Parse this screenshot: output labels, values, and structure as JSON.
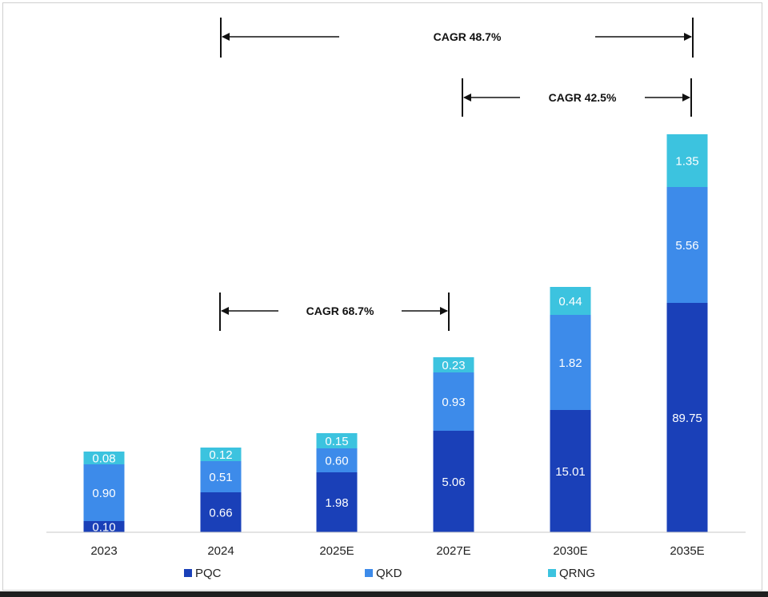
{
  "chart_data": {
    "type": "bar",
    "stacked": true,
    "categories": [
      "2023",
      "2024",
      "2025E",
      "2027E",
      "2030E",
      "2035E"
    ],
    "series": [
      {
        "name": "PQC",
        "color": "#1a40b8",
        "values": [
          0.1,
          0.66,
          1.98,
          5.06,
          15.01,
          89.75
        ],
        "labels": [
          "0.10",
          "0.66",
          "1.98",
          "5.06",
          "15.01",
          "89.75"
        ]
      },
      {
        "name": "QKD",
        "color": "#3d8bea",
        "values": [
          0.9,
          0.51,
          0.6,
          0.93,
          1.82,
          5.56
        ],
        "labels": [
          "0.90",
          "0.51",
          "0.60",
          "0.93",
          "1.82",
          "5.56"
        ]
      },
      {
        "name": "QRNG",
        "color": "#3cc3df",
        "values": [
          0.08,
          0.12,
          0.15,
          0.23,
          0.44,
          1.35
        ],
        "labels": [
          "0.08",
          "0.12",
          "0.15",
          "0.23",
          "0.44",
          "1.35"
        ]
      }
    ],
    "axis_scale": "non-linear (bar heights not proportional to values)",
    "grid": false,
    "legend_position": "bottom",
    "annotations": [
      {
        "text": "CAGR 48.7%",
        "from": "2024",
        "to": "2035E"
      },
      {
        "text": "CAGR 42.5%",
        "from": "2027E",
        "to": "2035E"
      },
      {
        "text": "CAGR 68.7%",
        "from": "2024",
        "to": "2027E"
      }
    ]
  }
}
